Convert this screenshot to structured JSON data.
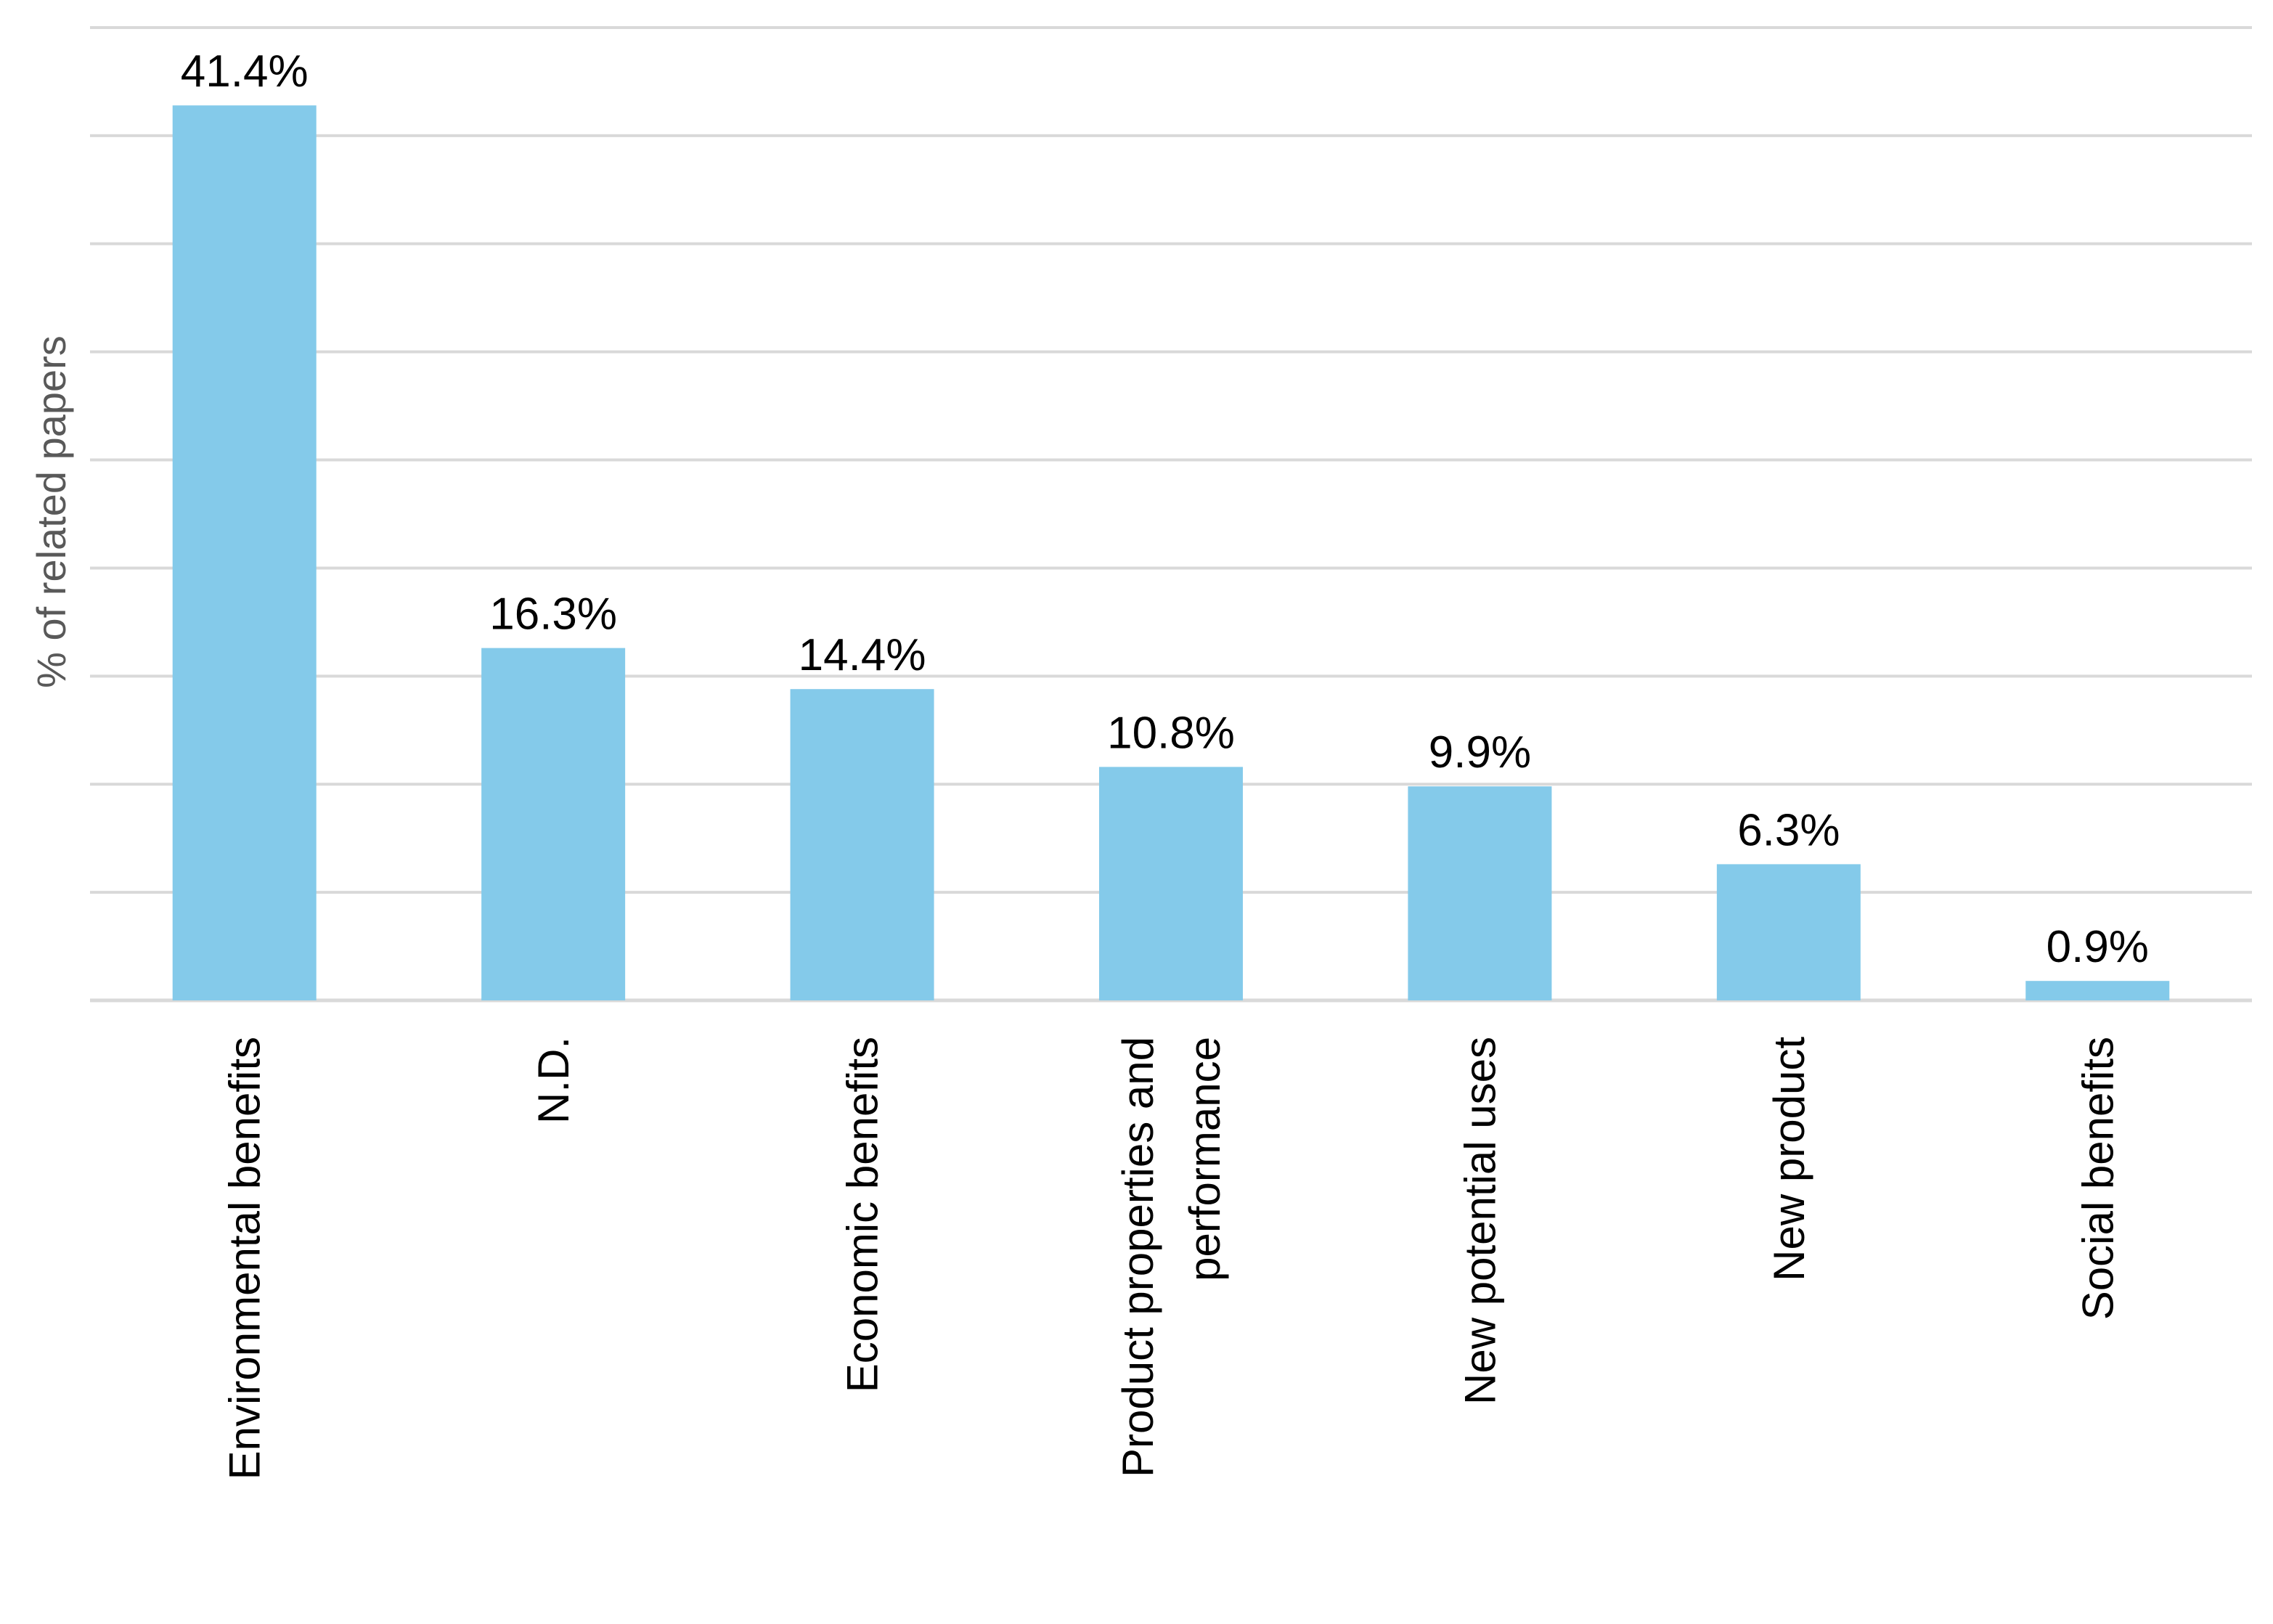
{
  "colors": {
    "bar": "#84CAEA",
    "gridline": "#D9D9D9",
    "text": "#000000",
    "axis_title": "#595959"
  },
  "chart_data": {
    "type": "bar",
    "title": "",
    "xlabel": "",
    "ylabel": "% of related papers",
    "ylim": [
      0,
      45
    ],
    "ytick_step": 5,
    "ytick_labels_shown": false,
    "grid": true,
    "legend": "none",
    "categories": [
      "Environmental benefits",
      "N.D.",
      "Economic benefits",
      "Product properties and performance",
      "New potential uses",
      "New product",
      "Social benefits"
    ],
    "category_label_lines": [
      [
        "Environmental benefits"
      ],
      [
        "N.D."
      ],
      [
        "Economic benefits"
      ],
      [
        "Product properties and",
        "performance"
      ],
      [
        "New potential uses"
      ],
      [
        "New product"
      ],
      [
        "Social benefits"
      ]
    ],
    "values": [
      41.4,
      16.3,
      14.4,
      10.8,
      9.9,
      6.3,
      0.9
    ],
    "data_labels": [
      "41.4%",
      "16.3%",
      "14.4%",
      "10.8%",
      "9.9%",
      "6.3%",
      "0.9%"
    ]
  }
}
